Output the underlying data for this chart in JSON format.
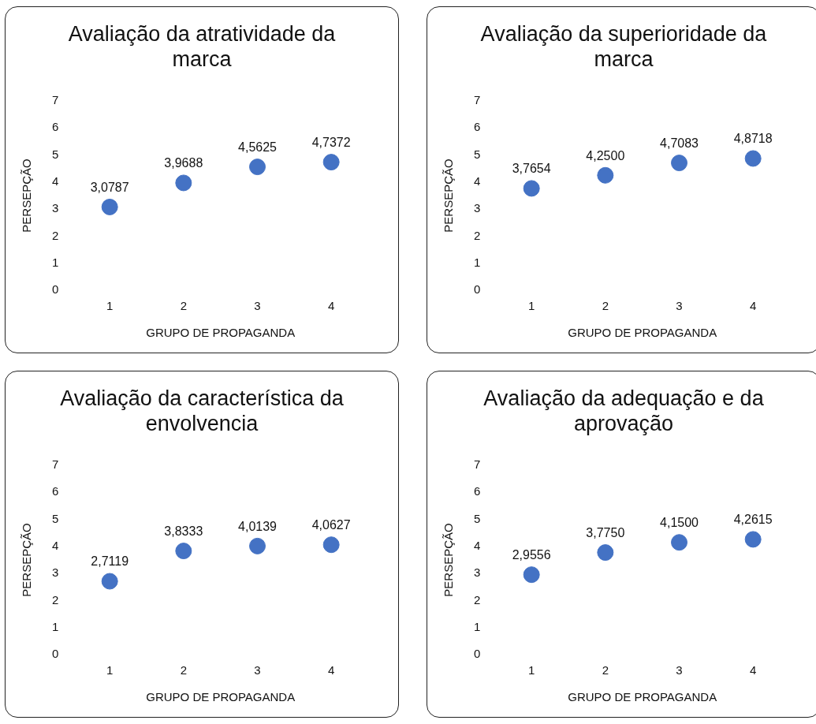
{
  "chart_data": [
    {
      "type": "scatter",
      "title": "Avaliação da atratividade da marca",
      "xlabel": "GRUPO DE PROPAGANDA",
      "ylabel": "PERSEPÇÃO",
      "categories": [
        "1",
        "2",
        "3",
        "4"
      ],
      "values": [
        3.0787,
        3.9688,
        4.5625,
        4.7372
      ],
      "value_labels": [
        "3,0787",
        "3,9688",
        "4,5625",
        "4,7372"
      ],
      "color": "#4472c4",
      "ylim": [
        0,
        7
      ],
      "yticks": [
        0,
        1,
        2,
        3,
        4,
        5,
        6,
        7
      ],
      "grid": false,
      "legend": false,
      "marker": "circle"
    },
    {
      "type": "scatter",
      "title": "Avaliação da superioridade da marca",
      "xlabel": "GRUPO DE PROPAGANDA",
      "ylabel": "PERSEPÇÃO",
      "categories": [
        "1",
        "2",
        "3",
        "4"
      ],
      "values": [
        3.7654,
        4.25,
        4.7083,
        4.8718
      ],
      "value_labels": [
        "3,7654",
        "4,2500",
        "4,7083",
        "4,8718"
      ],
      "color": "#4472c4",
      "ylim": [
        0,
        7
      ],
      "yticks": [
        0,
        1,
        2,
        3,
        4,
        5,
        6,
        7
      ],
      "grid": false,
      "legend": false,
      "marker": "circle"
    },
    {
      "type": "scatter",
      "title": "Avaliação da característica da envolvencia",
      "xlabel": "GRUPO DE PROPAGANDA",
      "ylabel": "PERSEPÇÃO",
      "categories": [
        "1",
        "2",
        "3",
        "4"
      ],
      "values": [
        2.7119,
        3.8333,
        4.0139,
        4.0627
      ],
      "value_labels": [
        "2,7119",
        "3,8333",
        "4,0139",
        "4,0627"
      ],
      "color": "#4472c4",
      "ylim": [
        0,
        7
      ],
      "yticks": [
        0,
        1,
        2,
        3,
        4,
        5,
        6,
        7
      ],
      "grid": false,
      "legend": false,
      "marker": "circle"
    },
    {
      "type": "scatter",
      "title": "Avaliação da adequação e da aprovação",
      "xlabel": "GRUPO DE PROPAGANDA",
      "ylabel": "PERSEPÇÃO",
      "categories": [
        "1",
        "2",
        "3",
        "4"
      ],
      "values": [
        2.9556,
        3.775,
        4.15,
        4.2615
      ],
      "value_labels": [
        "2,9556",
        "3,7750",
        "4,1500",
        "4,2615"
      ],
      "color": "#4472c4",
      "ylim": [
        0,
        7
      ],
      "yticks": [
        0,
        1,
        2,
        3,
        4,
        5,
        6,
        7
      ],
      "grid": false,
      "legend": false,
      "marker": "circle"
    }
  ]
}
